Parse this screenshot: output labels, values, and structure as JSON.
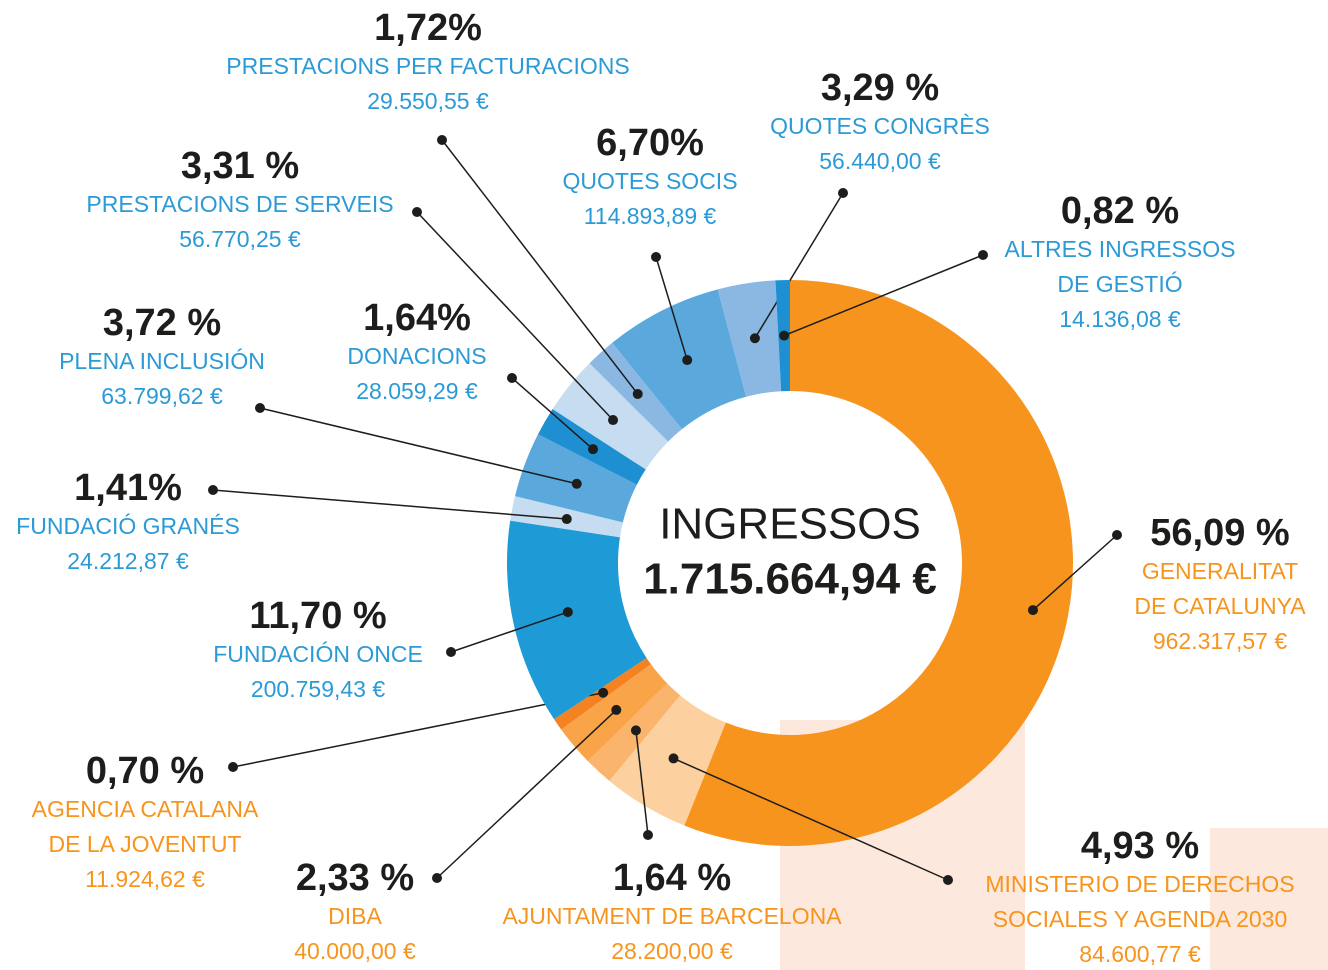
{
  "chart_data": {
    "type": "pie",
    "donut": true,
    "center_title": "INGRESSOS",
    "center_total": "1.715.664,94 €",
    "categories": [
      [
        "GENERALITAT",
        "DE CATALUNYA"
      ],
      [
        "MINISTERIO DE DERECHOS",
        "SOCIALES Y AGENDA 2030"
      ],
      [
        "AJUNTAMENT DE BARCELONA"
      ],
      [
        "DIBA"
      ],
      [
        "AGENCIA CATALANA",
        "DE LA JOVENTUT"
      ],
      [
        "FUNDACIÓN ONCE"
      ],
      [
        "FUNDACIÓ GRANÉS"
      ],
      [
        "PLENA INCLUSIÓN"
      ],
      [
        "DONACIONS"
      ],
      [
        "PRESTACIONS DE SERVEIS"
      ],
      [
        "PRESTACIONS PER FACTURACIONS"
      ],
      [
        "QUOTES SOCIS"
      ],
      [
        "QUOTES CONGRÈS"
      ],
      [
        "ALTRES INGRESSOS",
        "DE GESTIÓ"
      ]
    ],
    "values": [
      56.09,
      4.93,
      1.64,
      2.33,
      0.7,
      11.7,
      1.41,
      3.72,
      1.64,
      3.31,
      1.72,
      6.7,
      3.29,
      0.82
    ],
    "value_labels": [
      "56,09 %",
      "4,93 %",
      "1,64 %",
      "2,33 %",
      "0,70 %",
      "11,70 %",
      "1,41%",
      "3,72 %",
      "1,64%",
      "3,31 %",
      "1,72%",
      "6,70%",
      "3,29 %",
      "0,82 %"
    ],
    "amounts": [
      "962.317,57 €",
      "84.600,77 €",
      "28.200,00 €",
      "40.000,00 €",
      "11.924,62 €",
      "200.759,43 €",
      "24.212,87 €",
      "63.799,62 €",
      "28.059,29 €",
      "56.770,25 €",
      "29.550,55 €",
      "114.893,89 €",
      "56.440,00 €",
      "14.136,08 €"
    ],
    "colors": [
      "#f7941d",
      "#fdd09f",
      "#fbb46b",
      "#f9a449",
      "#f58220",
      "#1e9ad6",
      "#c5dcf1",
      "#5aa8dc",
      "#1e90d2",
      "#c5dcf1",
      "#8ab8e3",
      "#5aa8dc",
      "#8ab8e3",
      "#1e90d2"
    ]
  }
}
